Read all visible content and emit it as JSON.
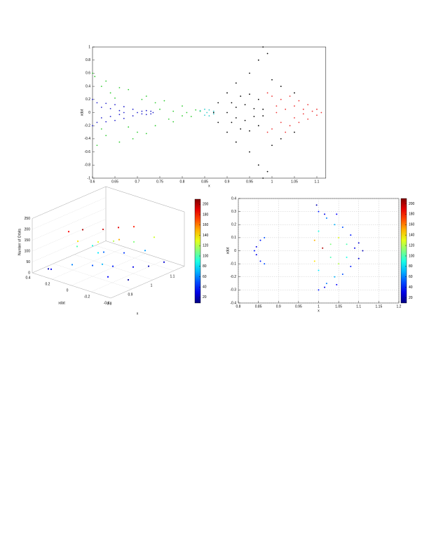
{
  "chart_data": [
    {
      "type": "scatter",
      "xlabel": "x",
      "ylabel": "xdot",
      "xlim": [
        0.6,
        1.12
      ],
      "ylim": [
        -1,
        1
      ],
      "xticks": [
        0.6,
        0.65,
        0.7,
        0.75,
        0.8,
        0.85,
        0.9,
        0.95,
        1,
        1.05,
        1.1
      ],
      "yticks": [
        -1,
        -0.8,
        -0.6,
        -0.4,
        -0.2,
        0,
        0.2,
        0.4,
        0.6,
        0.8,
        1
      ],
      "grid": false,
      "series": [
        {
          "color": "#33cc33",
          "x": [
            0.605,
            0.61,
            0.62,
            0.63,
            0.64,
            0.66,
            0.68,
            0.7,
            0.72,
            0.74,
            0.76,
            0.78,
            0.8,
            0.82,
            0.84,
            0.62,
            0.65,
            0.68,
            0.71,
            0.74,
            0.77,
            0.8,
            0.83,
            0.6,
            0.63,
            0.66,
            0.69,
            0.72,
            0.75,
            0.78,
            0.81
          ],
          "values": [
            0.55,
            -0.5,
            0.4,
            -0.35,
            0.3,
            -0.45,
            0.35,
            -0.3,
            0.25,
            -0.2,
            0.18,
            -0.14,
            0.1,
            -0.06,
            0.02,
            -0.25,
            0.22,
            -0.22,
            0.2,
            0.15,
            -0.1,
            -0.05,
            0.04,
            0.6,
            0.48,
            0.38,
            -0.4,
            -0.32,
            0.05,
            0.02,
            0
          ]
        },
        {
          "color": "#2222cc",
          "x": [
            0.61,
            0.63,
            0.65,
            0.67,
            0.69,
            0.7,
            0.69,
            0.67,
            0.65,
            0.63,
            0.61,
            0.62,
            0.64,
            0.66,
            0.67,
            0.66,
            0.64,
            0.62,
            0.71,
            0.72,
            0.73,
            0.735,
            0.73,
            0.72,
            0.71,
            0.6,
            0.6
          ],
          "values": [
            0.15,
            0.14,
            0.12,
            0.09,
            0.05,
            0,
            -0.05,
            -0.09,
            -0.12,
            -0.14,
            -0.15,
            0.08,
            0.06,
            0.03,
            0,
            -0.03,
            -0.06,
            -0.08,
            0.02,
            0.03,
            0.02,
            0,
            -0.02,
            -0.03,
            -0.02,
            0.2,
            -0.2
          ]
        },
        {
          "color": "#33cccc",
          "x": [
            0.84,
            0.85,
            0.86,
            0.87,
            0.85,
            0.86,
            0.87,
            0.855
          ],
          "values": [
            0.03,
            0.05,
            0.04,
            0.02,
            -0.04,
            -0.05,
            -0.02,
            0
          ]
        },
        {
          "color": "#000000",
          "x": [
            0.9,
            0.91,
            0.93,
            0.95,
            0.97,
            0.98,
            0.98,
            0.97,
            0.95,
            0.93,
            0.91,
            0.92,
            0.94,
            0.96,
            0.96,
            0.94,
            0.92,
            0.87,
            0.88,
            0.9,
            0.92,
            0.95,
            0.97,
            0.98,
            0.88,
            0.9,
            0.92,
            0.95,
            0.97,
            0.98,
            1.0,
            1.02,
            1.05,
            1.0,
            1.02,
            1.05,
            0.99,
            0.99
          ],
          "values": [
            0,
            0.15,
            0.25,
            0.28,
            0.2,
            0.05,
            -0.05,
            -0.2,
            -0.28,
            -0.25,
            -0.15,
            0.08,
            0.12,
            0.06,
            -0.06,
            -0.12,
            -0.08,
            0,
            0.15,
            0.3,
            0.45,
            0.6,
            0.8,
            1,
            -0.15,
            -0.3,
            -0.45,
            -0.6,
            -0.8,
            -1,
            0.5,
            0.4,
            0.3,
            -0.5,
            -0.4,
            -0.3,
            0.9,
            -0.9
          ]
        },
        {
          "color": "#ee3333",
          "x": [
            0.99,
            1.0,
            1.0,
            1.02,
            1.02,
            1.03,
            1.04,
            1.04,
            1.05,
            1.05,
            1.06,
            1.06,
            1.07,
            1.08,
            1.08,
            1.09,
            1.1,
            1.1,
            1.11,
            0.99,
            1.01,
            1.01,
            1.03,
            1.07
          ],
          "values": [
            0.3,
            0.25,
            -0.25,
            0.2,
            -0.15,
            0.05,
            0.25,
            -0.2,
            0.1,
            -0.08,
            0.18,
            -0.15,
            0.05,
            0.12,
            -0.1,
            0.02,
            0.05,
            -0.04,
            0,
            -0.3,
            0,
            0.1,
            -0.3,
            -0.02
          ]
        }
      ]
    },
    {
      "type": "scatter3d",
      "xlabel": "x",
      "ylabel": "xdat",
      "zlabel": "Number of Orbits",
      "xlim": [
        0.8,
        1.15
      ],
      "ylim": [
        -0.4,
        0.4
      ],
      "zlim": [
        0,
        250
      ],
      "xticks": [
        0.8,
        0.9,
        1,
        1.1
      ],
      "yticks": [
        -0.4,
        -0.2,
        0,
        0.2,
        0.4
      ],
      "zticks": [
        0,
        50,
        100,
        150,
        200,
        250
      ],
      "clim": [
        9,
        210
      ],
      "cticks": [
        20,
        40,
        60,
        80,
        100,
        120,
        140,
        160,
        180,
        200
      ],
      "x": [
        0.9,
        0.95,
        1.0,
        0.88,
        1.05,
        0.9,
        0.95,
        1.0,
        1.05,
        0.92,
        0.98,
        1.1,
        0.85,
        0.9,
        0.95,
        1.0,
        1.05,
        1.1,
        0.9,
        0.95,
        1.0,
        1.05,
        0.88,
        0.93,
        1.08,
        0.97,
        0.82,
        0.83
      ],
      "y": [
        0.1,
        0.0,
        -0.05,
        0.2,
        -0.1,
        0.15,
        0.05,
        0.0,
        -0.1,
        0.2,
        -0.1,
        -0.2,
        0.1,
        0.0,
        -0.1,
        -0.2,
        -0.25,
        -0.3,
        -0.1,
        0.05,
        0.1,
        0.0,
        -0.2,
        -0.3,
        -0.15,
        0.15,
        0.25,
        0.3
      ],
      "z": [
        200,
        195,
        190,
        185,
        180,
        140,
        130,
        120,
        110,
        100,
        150,
        125,
        60,
        50,
        40,
        30,
        20,
        25,
        70,
        80,
        55,
        45,
        35,
        15,
        65,
        90,
        30,
        20
      ]
    },
    {
      "type": "scatter",
      "xlabel": "x",
      "ylabel": "xdot",
      "xlim": [
        0.8,
        1.2
      ],
      "ylim": [
        -0.4,
        0.4
      ],
      "xticks": [
        0.8,
        0.85,
        0.9,
        0.95,
        1,
        1.05,
        1.1,
        1.15,
        1.2
      ],
      "yticks": [
        -0.4,
        -0.3,
        -0.2,
        -0.1,
        0,
        0.1,
        0.2,
        0.3,
        0.4
      ],
      "grid": true,
      "clim": [
        10,
        210
      ],
      "cticks": [
        20,
        40,
        60,
        80,
        100,
        120,
        140,
        160,
        180,
        200
      ],
      "x": [
        0.845,
        0.84,
        0.845,
        0.855,
        0.865,
        0.855,
        0.865,
        1.0,
        1.0,
        1.0,
        1.0,
        1.02,
        1.02,
        1.03,
        1.03,
        1.04,
        1.04,
        1.05,
        1.05,
        1.06,
        1.06,
        1.07,
        1.07,
        1.08,
        1.08,
        1.09,
        1.1,
        1.1,
        1.11,
        0.99,
        0.99,
        1.01,
        1.015,
        1.015,
        1.045,
        1.045,
        0.995
      ],
      "values": [
        0.03,
        0,
        -0.03,
        0.08,
        0.1,
        -0.08,
        -0.1,
        0.3,
        -0.3,
        0.15,
        -0.15,
        0.25,
        -0.25,
        0.05,
        -0.05,
        0.2,
        -0.2,
        0.1,
        -0.1,
        0.18,
        -0.18,
        0.05,
        -0.05,
        0.12,
        -0.12,
        0.02,
        0.06,
        -0.06,
        0,
        0.08,
        -0.08,
        0.02,
        0.28,
        -0.28,
        0.28,
        -0.26,
        0.35
      ],
      "c": [
        30,
        40,
        30,
        40,
        50,
        40,
        50,
        40,
        40,
        90,
        80,
        60,
        60,
        110,
        100,
        70,
        70,
        130,
        120,
        50,
        50,
        100,
        90,
        40,
        40,
        30,
        25,
        25,
        20,
        150,
        140,
        200,
        30,
        30,
        35,
        35,
        20
      ]
    }
  ]
}
